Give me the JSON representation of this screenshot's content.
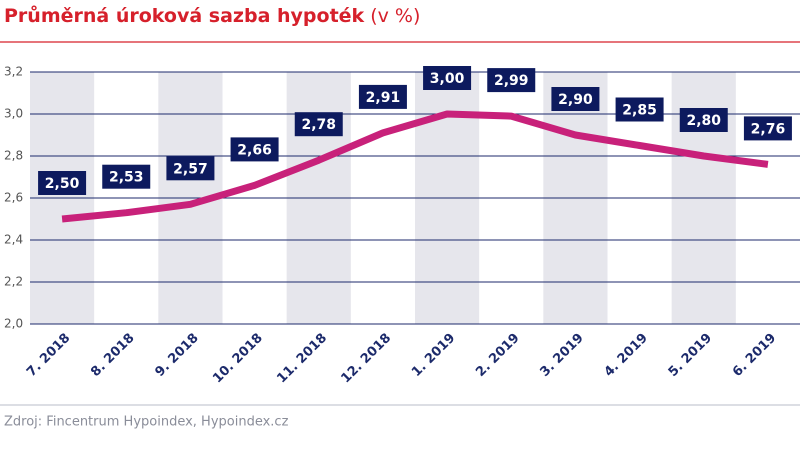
{
  "chart_data": {
    "type": "line",
    "title": "Průměrná úroková sazba hypoték",
    "subtitle": "(v %)",
    "source": "Zdroj: Fincentrum Hypoindex, Hypoindex.cz",
    "categories": [
      "7. 2018",
      "8. 2018",
      "9. 2018",
      "10. 2018",
      "11. 2018",
      "12. 2018",
      "1. 2019",
      "2. 2019",
      "3. 2019",
      "4. 2019",
      "5. 2019",
      "6. 2019"
    ],
    "series": [
      {
        "name": "Průměrná úroková sazba",
        "color": "#c8217a",
        "values": [
          2.5,
          2.53,
          2.57,
          2.66,
          2.78,
          2.91,
          3.0,
          2.99,
          2.9,
          2.85,
          2.8,
          2.76
        ],
        "value_labels": [
          "2,50",
          "2,53",
          "2,57",
          "2,66",
          "2,78",
          "2,91",
          "3,00",
          "2,99",
          "2,90",
          "2,85",
          "2,80",
          "2,76"
        ]
      }
    ],
    "ylim": [
      2.0,
      3.2
    ],
    "yticks": [
      {
        "value": 2.0,
        "label": "2,0"
      },
      {
        "value": 2.2,
        "label": "2,2"
      },
      {
        "value": 2.4,
        "label": "2,4"
      },
      {
        "value": 2.6,
        "label": "2,6"
      },
      {
        "value": 2.8,
        "label": "2,8"
      },
      {
        "value": 3.0,
        "label": "3,0"
      },
      {
        "value": 3.2,
        "label": "3,2"
      }
    ],
    "grid": true
  }
}
